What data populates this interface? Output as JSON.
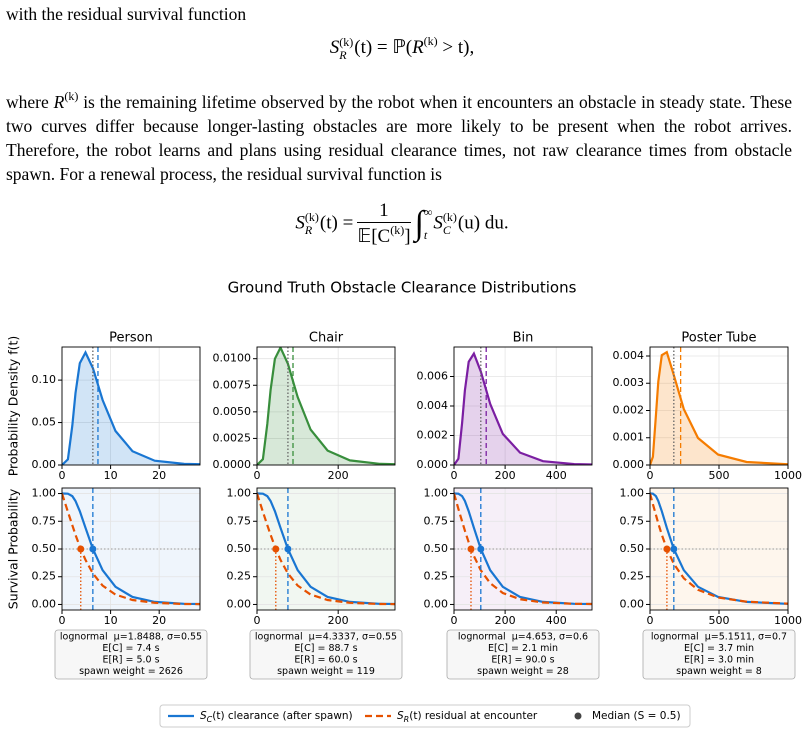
{
  "text": {
    "p1": "with the residual survival function",
    "eq1": {
      "lhs": "S",
      "lhs_sup": "(k)",
      "lhs_sub": "R",
      "mid": "(t) = ℙ(",
      "var": "R",
      "var_sup": "(k)",
      "end": " > t),"
    },
    "p2": {
      "before": "where ",
      "var": "R",
      "var_sup": "(k)",
      "after": " is the remaining lifetime observed by the robot when it encounters an obstacle in steady state. These two curves differ because longer-lasting obstacles are more likely to be present when the robot arrives. Therefore, the robot learns and plans using residual clearance times, not raw clearance times from obstacle spawn. For a renewal process, the residual survival function is"
    },
    "eq2": {
      "lhs": "S",
      "lhs_sup": "(k)",
      "lhs_sub": "R",
      "lhs_rest": "(t) =",
      "num": "1",
      "den": "𝔼[C",
      "den_sup": "(k)",
      "den_end": "]",
      "integral": "∫",
      "upper": "∞",
      "lower": "t",
      "integrand": "S",
      "int_sup": "(k)",
      "int_sub": "C",
      "int_rest": "(u) du."
    }
  },
  "figure": {
    "title": "Ground Truth Obstacle Clearance Distributions",
    "legend": [
      {
        "symbol": "S",
        "sub": "C",
        "rest": "(t) clearance (after spawn)"
      },
      {
        "symbol": "S",
        "sub": "R",
        "rest": "(t) residual at encounter"
      },
      {
        "text": "Median (S = 0.5)",
        "color": "#444444"
      }
    ]
  },
  "chart_data": [
    {
      "type": "area",
      "title": "Person",
      "ylabel": "Probability Density f(t)",
      "color": "#1976d2",
      "grid": true,
      "x": [
        0,
        1.22,
        2.12,
        2.78,
        3.67,
        4.83,
        6.35,
        8.36,
        11.01,
        14.5,
        19.08,
        25.12,
        33.08
      ],
      "values": [
        0,
        0.0066,
        0.0463,
        0.0847,
        0.1199,
        0.1325,
        0.1142,
        0.0766,
        0.04,
        0.0162,
        0.0051,
        0.0013,
        0.0002
      ],
      "xlim": [
        0,
        28.4
      ],
      "xticks": [
        0,
        10,
        20
      ],
      "ylim": [
        0,
        0.139
      ],
      "yticks": [
        {
          "value": 0,
          "label": "0.00"
        },
        {
          "value": 0.05,
          "label": "0.05"
        },
        {
          "value": 0.1,
          "label": "0.10"
        }
      ],
      "vlines": [
        {
          "value": 6.35,
          "style": "dotted",
          "color": "#666666"
        },
        {
          "value": 7.4,
          "style": "dashed",
          "color": "#1976d2"
        }
      ]
    },
    {
      "type": "line",
      "ylabel": "Survival Probability",
      "tint": "#1976d2",
      "grid": true,
      "x": [
        0,
        1.22,
        2.12,
        2.78,
        3.67,
        4.83,
        6.35,
        8.36,
        11.01,
        14.5,
        19.08,
        25.12,
        33.08
      ],
      "series": [
        {
          "color": "#1976d2",
          "dash": "solid",
          "values": [
            1,
            0.9987,
            0.977,
            0.933,
            0.841,
            0.691,
            0.5,
            0.309,
            0.159,
            0.067,
            0.023,
            0.006,
            0.001
          ]
        },
        {
          "color": "#e65100",
          "dash": "dashed",
          "values": [
            1,
            0.835,
            0.715,
            0.628,
            0.522,
            0.402,
            0.279,
            0.17,
            0.089,
            0.04,
            0.0146,
            0.0045,
            0.0011
          ]
        }
      ],
      "xlim": [
        0,
        28.4
      ],
      "xticks": [
        0,
        10,
        20
      ],
      "ylim": [
        -0.05,
        1.05
      ],
      "yticks": [
        {
          "value": 0,
          "label": "0.00"
        },
        {
          "value": 0.25,
          "label": "0.25"
        },
        {
          "value": 0.5,
          "label": "0.50"
        },
        {
          "value": 0.75,
          "label": "0.75"
        },
        {
          "value": 1,
          "label": "1.00"
        }
      ],
      "median_level": 0.5,
      "medians": [
        {
          "value": 6.35,
          "color": "#1976d2",
          "style": "dashed"
        },
        {
          "value": 3.86,
          "color": "#e65100",
          "style": "dotted"
        }
      ],
      "annotations": [
        "lognormal  μ=1.8488, σ=0.55",
        "E[C] = 7.4 s",
        "E[R] = 5.0 s",
        "spawn weight = 2626"
      ]
    },
    {
      "type": "area",
      "title": "Chair",
      "color": "#388e3c",
      "grid": true,
      "x": [
        0,
        14.6,
        25.4,
        33.4,
        44,
        57.9,
        76.2,
        100.3,
        132.1,
        174,
        228.9,
        301.4,
        397
      ],
      "values": [
        0,
        0.00055,
        0.00386,
        0.00706,
        0.00999,
        0.01104,
        0.00952,
        0.00638,
        0.00333,
        0.00135,
        0.00043,
        0.00011,
        2e-05
      ],
      "xlim": [
        0,
        340
      ],
      "xticks": [
        0,
        200
      ],
      "ylim": [
        0,
        0.0111
      ],
      "yticks": [
        {
          "value": 0,
          "label": "0.0000"
        },
        {
          "value": 0.0025,
          "label": "0.0025"
        },
        {
          "value": 0.005,
          "label": "0.0050"
        },
        {
          "value": 0.0075,
          "label": "0.0075"
        },
        {
          "value": 0.01,
          "label": "0.0100"
        }
      ],
      "vlines": [
        {
          "value": 76.2,
          "style": "dotted",
          "color": "#666666"
        },
        {
          "value": 88.7,
          "style": "dashed",
          "color": "#388e3c"
        }
      ]
    },
    {
      "type": "line",
      "tint": "#388e3c",
      "grid": true,
      "x": [
        0,
        14.6,
        25.4,
        33.4,
        44,
        57.9,
        76.2,
        100.3,
        132.1,
        174,
        228.9,
        301.4,
        397
      ],
      "series": [
        {
          "color": "#1976d2",
          "dash": "solid",
          "values": [
            1,
            0.9987,
            0.977,
            0.933,
            0.841,
            0.691,
            0.5,
            0.309,
            0.159,
            0.067,
            0.023,
            0.006,
            0.001
          ]
        },
        {
          "color": "#e65100",
          "dash": "dashed",
          "values": [
            1,
            0.835,
            0.715,
            0.628,
            0.522,
            0.402,
            0.279,
            0.17,
            0.089,
            0.04,
            0.0146,
            0.0045,
            0.0011
          ]
        }
      ],
      "xlim": [
        0,
        340
      ],
      "xticks": [
        0,
        200
      ],
      "ylim": [
        -0.05,
        1.05
      ],
      "yticks": [
        {
          "value": 0,
          "label": "0.00"
        },
        {
          "value": 0.25,
          "label": "0.25"
        },
        {
          "value": 0.5,
          "label": "0.50"
        },
        {
          "value": 0.75,
          "label": "0.75"
        },
        {
          "value": 1,
          "label": "1.00"
        }
      ],
      "median_level": 0.5,
      "medians": [
        {
          "value": 76.2,
          "color": "#1976d2",
          "style": "dashed"
        },
        {
          "value": 46.3,
          "color": "#e65100",
          "style": "dotted"
        }
      ],
      "annotations": [
        "lognormal  μ=4.3337, σ=0.55",
        "E[C] = 88.7 s",
        "E[R] = 60.0 s",
        "spawn weight = 119"
      ]
    },
    {
      "type": "area",
      "title": "Bin",
      "color": "#7b1fa2",
      "grid": true,
      "x": [
        0,
        17.3,
        31.6,
        42.7,
        57.6,
        77.7,
        104.9,
        141.6,
        191.1,
        258.1,
        348.3,
        470.2,
        634.6
      ],
      "values": [
        0,
        0.00043,
        0.00285,
        0.00506,
        0.007,
        0.00755,
        0.00634,
        0.00414,
        0.00211,
        0.00084,
        0.00026,
        6e-05,
        1e-05
      ],
      "xlim": [
        0,
        540
      ],
      "xticks": [
        0,
        200,
        400
      ],
      "ylim": [
        0,
        0.008
      ],
      "yticks": [
        {
          "value": 0,
          "label": "0.000"
        },
        {
          "value": 0.002,
          "label": "0.002"
        },
        {
          "value": 0.004,
          "label": "0.004"
        },
        {
          "value": 0.006,
          "label": "0.006"
        }
      ],
      "vlines": [
        {
          "value": 104.9,
          "style": "dotted",
          "color": "#666666"
        },
        {
          "value": 126,
          "style": "dashed",
          "color": "#7b1fa2"
        }
      ]
    },
    {
      "type": "line",
      "tint": "#7b1fa2",
      "grid": true,
      "x": [
        0,
        17.3,
        31.6,
        42.7,
        57.6,
        77.7,
        104.9,
        141.6,
        191.1,
        258.1,
        348.3,
        470.2,
        634.6
      ],
      "series": [
        {
          "color": "#1976d2",
          "dash": "solid",
          "values": [
            1,
            0.9987,
            0.977,
            0.933,
            0.841,
            0.691,
            0.5,
            0.309,
            0.159,
            0.067,
            0.023,
            0.006,
            0.001
          ]
        },
        {
          "color": "#e65100",
          "dash": "dashed",
          "values": [
            1,
            0.862,
            0.749,
            0.665,
            0.56,
            0.437,
            0.308,
            0.192,
            0.103,
            0.047,
            0.0176,
            0.0055,
            0.0014
          ]
        }
      ],
      "xlim": [
        0,
        540
      ],
      "xticks": [
        0,
        200,
        400
      ],
      "ylim": [
        -0.05,
        1.05
      ],
      "yticks": [
        {
          "value": 0,
          "label": "0.00"
        },
        {
          "value": 0.25,
          "label": "0.25"
        },
        {
          "value": 0.5,
          "label": "0.50"
        },
        {
          "value": 0.75,
          "label": "0.75"
        },
        {
          "value": 1,
          "label": "1.00"
        }
      ],
      "median_level": 0.5,
      "medians": [
        {
          "value": 104.9,
          "color": "#1976d2",
          "style": "dashed"
        },
        {
          "value": 66.5,
          "color": "#e65100",
          "style": "dotted"
        }
      ],
      "annotations": [
        "lognormal  μ=4.653, σ=0.6",
        "E[C] = 2.1 min",
        "E[R] = 90.0 s",
        "spawn weight = 28"
      ]
    },
    {
      "type": "area",
      "title": "Poster Tube",
      "color": "#f57c00",
      "grid": true,
      "x": [
        0,
        21.1,
        42.6,
        60.4,
        85.7,
        121.6,
        172.6,
        244.9,
        347.6,
        493.3,
        699.9,
        993.3,
        1409
      ],
      "values": [
        0,
        0.0003,
        0.00181,
        0.00306,
        0.00403,
        0.00414,
        0.0033,
        0.00205,
        0.00099,
        0.00038,
        0.00011,
        3e-05,
        0
      ],
      "xlim": [
        0,
        1000
      ],
      "xticks": [
        0,
        500,
        1000
      ],
      "ylim": [
        0,
        0.00433
      ],
      "yticks": [
        {
          "value": 0,
          "label": "0.000"
        },
        {
          "value": 0.001,
          "label": "0.001"
        },
        {
          "value": 0.002,
          "label": "0.002"
        },
        {
          "value": 0.003,
          "label": "0.003"
        },
        {
          "value": 0.004,
          "label": "0.004"
        }
      ],
      "vlines": [
        {
          "value": 172.6,
          "style": "dotted",
          "color": "#666666"
        },
        {
          "value": 222,
          "style": "dashed",
          "color": "#f57c00"
        }
      ]
    },
    {
      "type": "line",
      "tint": "#f57c00",
      "grid": true,
      "x": [
        0,
        21.1,
        42.6,
        60.4,
        85.7,
        121.6,
        172.6,
        244.9,
        347.6,
        493.3,
        699.9,
        993.3,
        1409
      ],
      "series": [
        {
          "color": "#1976d2",
          "dash": "solid",
          "values": [
            1,
            0.9987,
            0.977,
            0.933,
            0.841,
            0.691,
            0.5,
            0.309,
            0.159,
            0.067,
            0.023,
            0.006,
            0.001
          ]
        },
        {
          "color": "#e65100",
          "dash": "dashed",
          "values": [
            1,
            0.904,
            0.808,
            0.73,
            0.628,
            0.504,
            0.367,
            0.236,
            0.132,
            0.063,
            0.0244,
            0.008,
            0.0021
          ]
        }
      ],
      "xlim": [
        0,
        1000
      ],
      "xticks": [
        0,
        500,
        1000
      ],
      "ylim": [
        -0.05,
        1.05
      ],
      "yticks": [
        {
          "value": 0,
          "label": "0.00"
        },
        {
          "value": 0.25,
          "label": "0.25"
        },
        {
          "value": 0.5,
          "label": "0.50"
        },
        {
          "value": 0.75,
          "label": "0.75"
        },
        {
          "value": 1,
          "label": "1.00"
        }
      ],
      "median_level": 0.5,
      "medians": [
        {
          "value": 172.6,
          "color": "#1976d2",
          "style": "dashed"
        },
        {
          "value": 122.5,
          "color": "#e65100",
          "style": "dotted"
        }
      ],
      "annotations": [
        "lognormal  μ=5.1511, σ=0.7",
        "E[C] = 3.7 min",
        "E[R] = 3.0 min",
        "spawn weight = 8"
      ]
    }
  ]
}
